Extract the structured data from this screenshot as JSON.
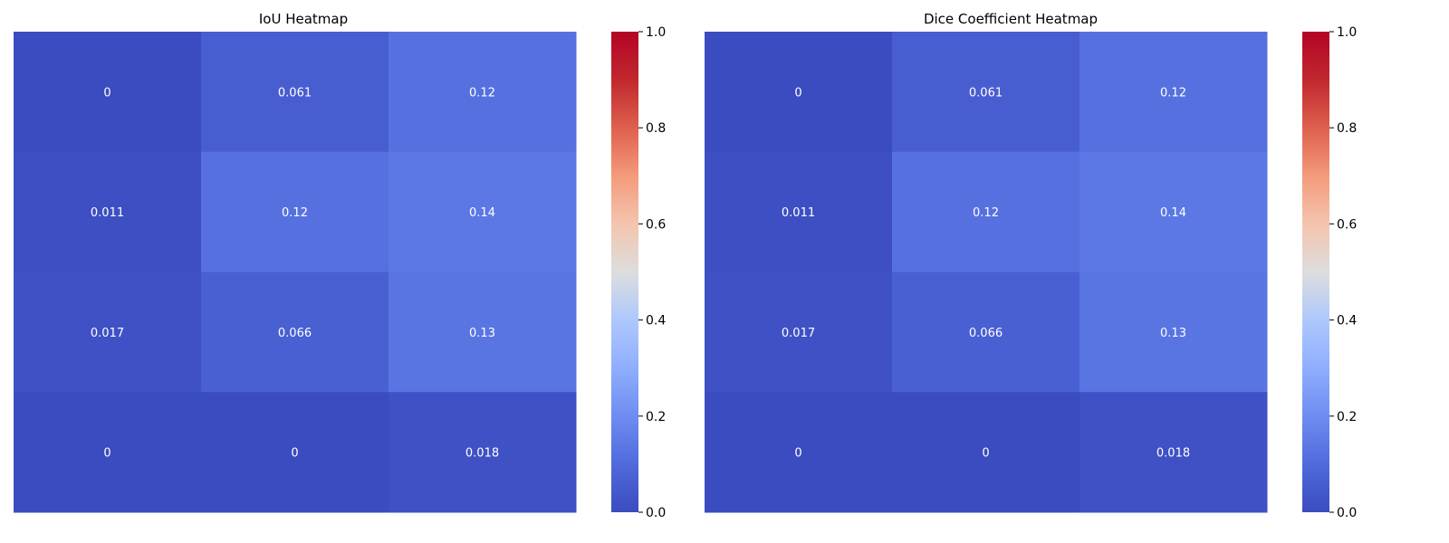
{
  "chart_data": [
    {
      "type": "heatmap",
      "title": "IoU Heatmap",
      "rows": 4,
      "cols": 3,
      "values": [
        [
          0,
          0.061,
          0.12
        ],
        [
          0.011,
          0.12,
          0.14
        ],
        [
          0.017,
          0.066,
          0.13
        ],
        [
          0,
          0,
          0.018
        ]
      ],
      "cell_labels": [
        [
          "0",
          "0.061",
          "0.12"
        ],
        [
          "0.011",
          "0.12",
          "0.14"
        ],
        [
          "0.017",
          "0.066",
          "0.13"
        ],
        [
          "0",
          "0",
          "0.018"
        ]
      ],
      "colormap": "coolwarm",
      "vmin": 0,
      "vmax": 1,
      "colorbar_ticks": [
        "0.0",
        "0.2",
        "0.4",
        "0.6",
        "0.8",
        "1.0"
      ],
      "xlabel": "",
      "ylabel": ""
    },
    {
      "type": "heatmap",
      "title": "Dice Coefficient Heatmap",
      "rows": 4,
      "cols": 3,
      "values": [
        [
          0,
          0.061,
          0.12
        ],
        [
          0.011,
          0.12,
          0.14
        ],
        [
          0.017,
          0.066,
          0.13
        ],
        [
          0,
          0,
          0.018
        ]
      ],
      "cell_labels": [
        [
          "0",
          "0.061",
          "0.12"
        ],
        [
          "0.011",
          "0.12",
          "0.14"
        ],
        [
          "0.017",
          "0.066",
          "0.13"
        ],
        [
          "0",
          "0",
          "0.018"
        ]
      ],
      "colormap": "coolwarm",
      "vmin": 0,
      "vmax": 1,
      "colorbar_ticks": [
        "0.0",
        "0.2",
        "0.4",
        "0.6",
        "0.8",
        "1.0"
      ],
      "xlabel": "",
      "ylabel": ""
    }
  ],
  "colors": {
    "cell_text": "#ffffff",
    "axis_text": "#000000"
  }
}
